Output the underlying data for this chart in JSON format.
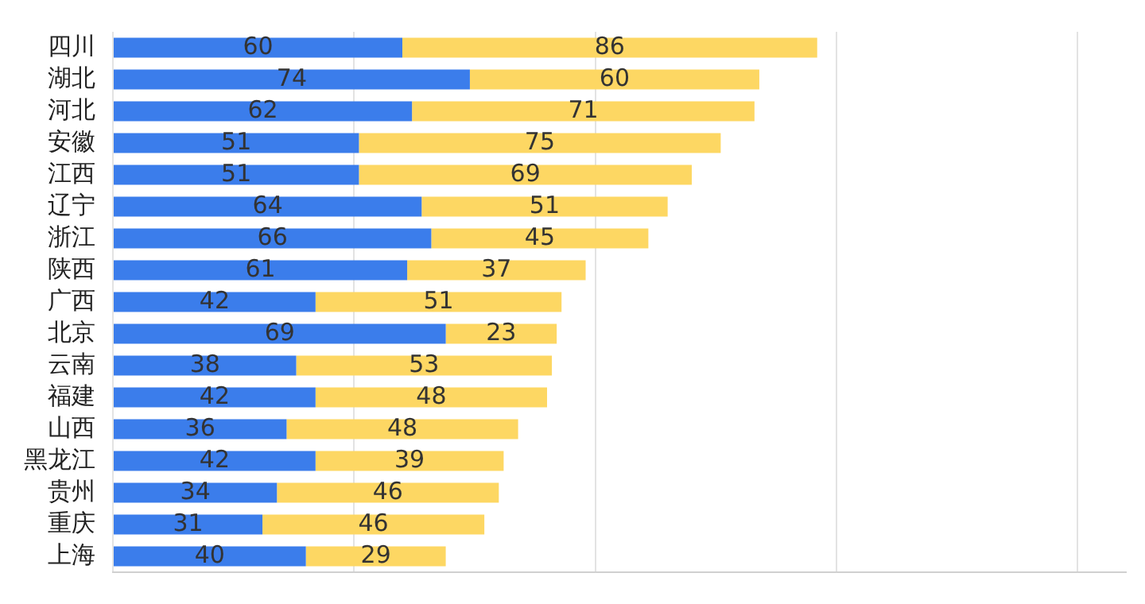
{
  "chart_data": {
    "type": "bar",
    "orientation": "horizontal",
    "stacked": true,
    "categories": [
      "四川",
      "湖北",
      "河北",
      "安徽",
      "江西",
      "辽宁",
      "浙江",
      "陕西",
      "广西",
      "北京",
      "云南",
      "福建",
      "山西",
      "黑龙江",
      "贵州",
      "重庆",
      "上海"
    ],
    "series": [
      {
        "color": "#3b7deb",
        "values": [
          60,
          74,
          62,
          51,
          51,
          64,
          66,
          61,
          42,
          69,
          38,
          42,
          36,
          42,
          34,
          31,
          40
        ]
      },
      {
        "color": "#fdd763",
        "values": [
          86,
          60,
          71,
          75,
          69,
          51,
          45,
          37,
          51,
          23,
          53,
          48,
          48,
          39,
          46,
          46,
          29
        ]
      }
    ],
    "xlim": [
      0,
      210
    ],
    "xticks": [
      {
        "value": 0,
        "label": null
      },
      {
        "value": 50,
        "label": null
      },
      {
        "value": 100,
        "label": null
      },
      {
        "value": 150,
        "label": null
      },
      {
        "value": 200,
        "label": null
      }
    ],
    "grid": "x",
    "legend": false,
    "tick_labels": "y",
    "data_labels": true
  }
}
